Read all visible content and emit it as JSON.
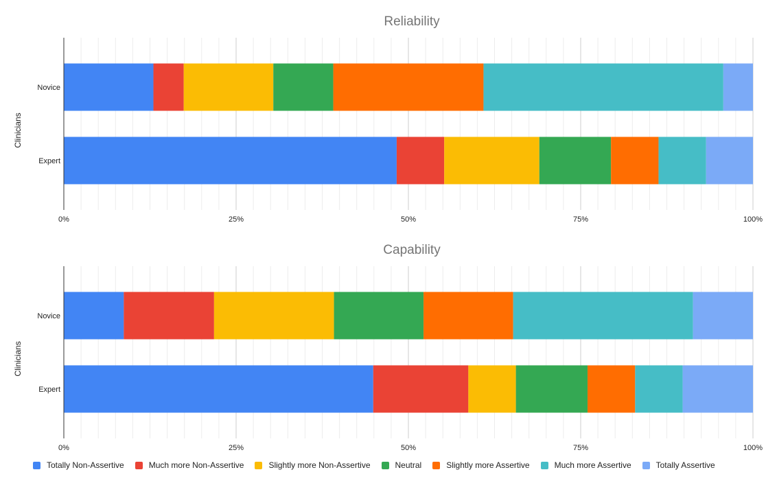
{
  "legend_title": "",
  "chart_data": [
    {
      "type": "bar",
      "orientation": "horizontal",
      "stacked": "percent",
      "title": "Reliability",
      "ylabel": "Clinicians",
      "xlabel": "",
      "categories": [
        "Novice",
        "Expert"
      ],
      "xlim": [
        0,
        100
      ],
      "x_ticks": [
        "0%",
        "25%",
        "50%",
        "75%",
        "100%"
      ],
      "grid": true,
      "legend_position": "bottom",
      "series": [
        {
          "name": "Totally Non-Assertive",
          "color": "#4285F4",
          "values": [
            13,
            48.3
          ]
        },
        {
          "name": "Much more Non-Assertive",
          "color": "#EA4335",
          "values": [
            4.4,
            6.9
          ]
        },
        {
          "name": "Slightly more Non-Assertive",
          "color": "#FBBC04",
          "values": [
            13,
            13.8
          ]
        },
        {
          "name": "Neutral",
          "color": "#34A853",
          "values": [
            8.7,
            10.4
          ]
        },
        {
          "name": "Slightly more Assertive",
          "color": "#FF6D01",
          "values": [
            21.8,
            6.9
          ]
        },
        {
          "name": "Much more Assertive",
          "color": "#46BDC6",
          "values": [
            34.8,
            6.9
          ]
        },
        {
          "name": "Totally Assertive",
          "color": "#7BAAF7",
          "values": [
            4.3,
            6.8
          ]
        }
      ]
    },
    {
      "type": "bar",
      "orientation": "horizontal",
      "stacked": "percent",
      "title": "Capability",
      "ylabel": "Clinicians",
      "xlabel": "",
      "categories": [
        "Novice",
        "Expert"
      ],
      "xlim": [
        0,
        100
      ],
      "x_ticks": [
        "0%",
        "25%",
        "50%",
        "75%",
        "100%"
      ],
      "grid": true,
      "legend_position": "bottom",
      "series": [
        {
          "name": "Totally Non-Assertive",
          "color": "#4285F4",
          "values": [
            8.7,
            44.9
          ]
        },
        {
          "name": "Much more Non-Assertive",
          "color": "#EA4335",
          "values": [
            13.1,
            13.8
          ]
        },
        {
          "name": "Slightly more Non-Assertive",
          "color": "#FBBC04",
          "values": [
            17.4,
            6.9
          ]
        },
        {
          "name": "Neutral",
          "color": "#34A853",
          "values": [
            13,
            10.4
          ]
        },
        {
          "name": "Slightly more Assertive",
          "color": "#FF6D01",
          "values": [
            13,
            6.9
          ]
        },
        {
          "name": "Much more Assertive",
          "color": "#46BDC6",
          "values": [
            26.1,
            6.9
          ]
        },
        {
          "name": "Totally Assertive",
          "color": "#7BAAF7",
          "values": [
            8.7,
            10.2
          ]
        }
      ]
    }
  ]
}
